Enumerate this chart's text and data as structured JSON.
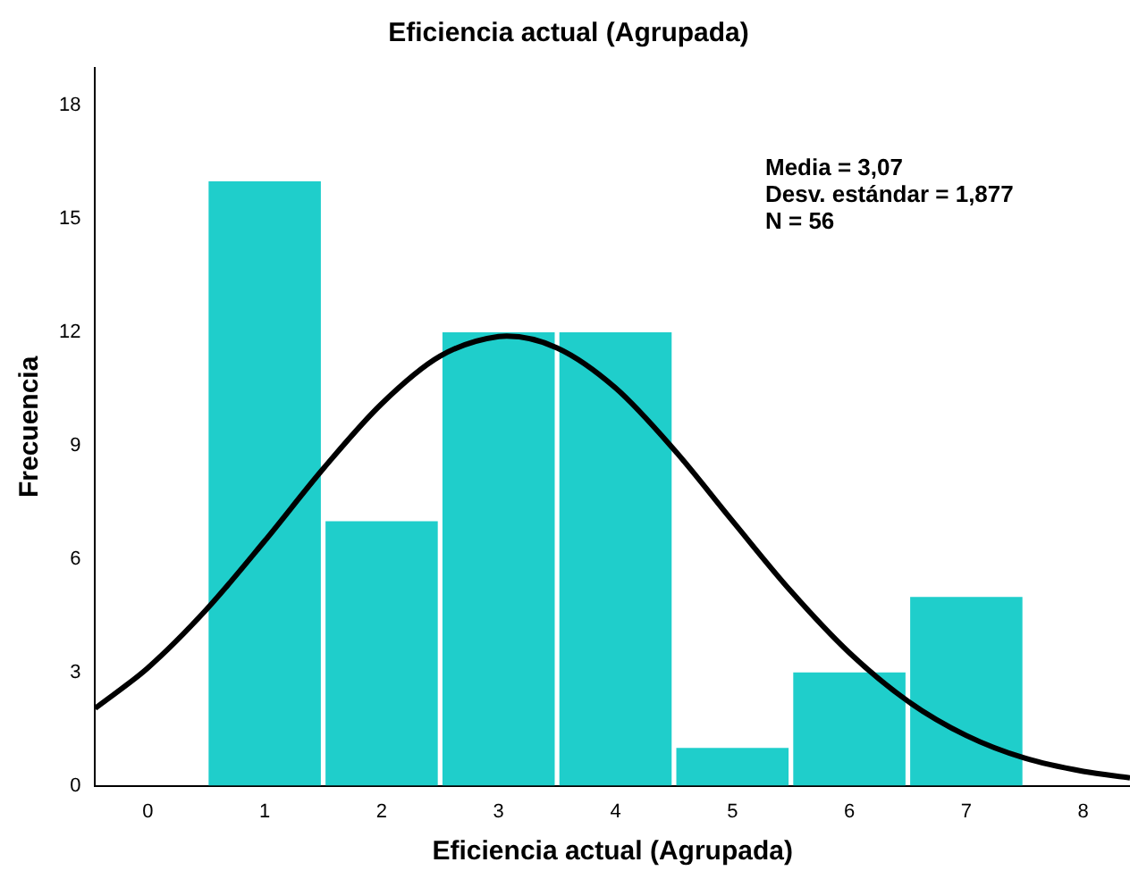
{
  "chart_data": {
    "type": "histogram",
    "title": "Eficiencia actual (Agrupada)",
    "xlabel": "Eficiencia actual (Agrupada)",
    "ylabel": "Frecuencia",
    "bins": [
      0.5,
      1.5,
      2.5,
      3.5,
      4.5,
      5.5,
      6.5,
      7.5
    ],
    "values": [
      16,
      7,
      12,
      12,
      1,
      3,
      5
    ],
    "color": "#1fcecb",
    "series": [
      {
        "type": "line",
        "color": "#000000",
        "x": [
          -0.45,
          0,
          0.5,
          1,
          1.5,
          2,
          2.5,
          3,
          3.07,
          3.5,
          4,
          4.5,
          5,
          5.5,
          6,
          6.5,
          7,
          7.5,
          8,
          8.4
        ],
        "values": [
          2.05,
          3.12,
          4.66,
          6.48,
          8.39,
          10.11,
          11.37,
          11.89,
          11.9,
          11.59,
          10.53,
          8.9,
          7.01,
          5.15,
          3.52,
          2.24,
          1.33,
          0.73,
          0.38,
          0.21
        ]
      }
    ],
    "xlim": [
      -0.45,
      8.4
    ],
    "xticks": [
      0,
      1,
      2,
      3,
      4,
      5,
      6,
      7,
      8
    ],
    "ylim": [
      0,
      19
    ],
    "yticks": [
      0,
      3,
      6,
      9,
      12,
      15,
      18
    ],
    "grid": false,
    "legend": false,
    "marker": "none",
    "annotations": [
      "Media = 3,07",
      "Desv. estándar = 1,877",
      "N = 56"
    ]
  }
}
